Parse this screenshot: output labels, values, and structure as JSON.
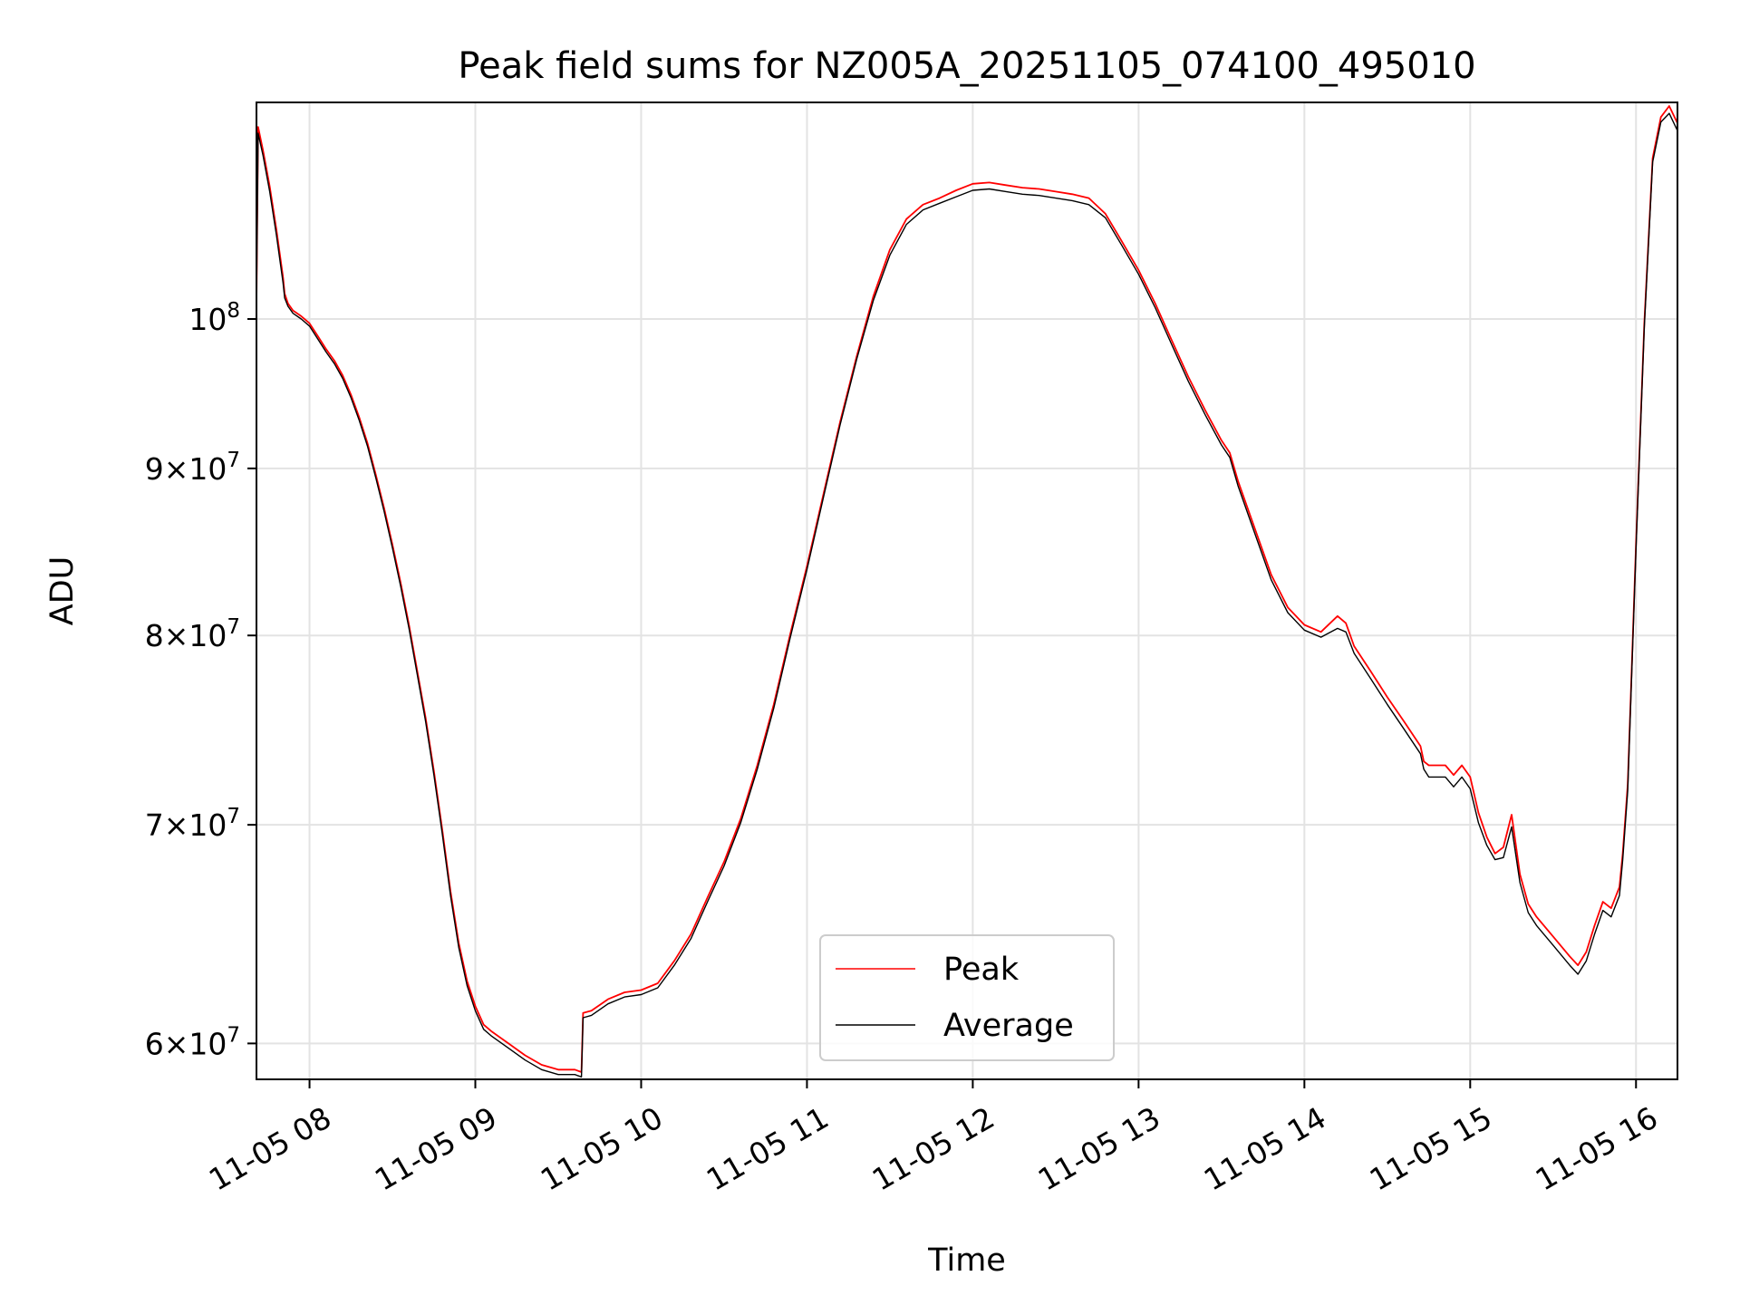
{
  "chart_data": {
    "type": "line",
    "title": "Peak field sums for NZ005A_20251105_074100_495010",
    "xlabel": "Time",
    "ylabel": "ADU",
    "yscale": "log",
    "grid": true,
    "legend_position": "bottom-center",
    "xlim": [
      7.68,
      16.25
    ],
    "ylim": [
      58.5,
      116.5
    ],
    "x_unit": "hour of day on 11-05",
    "y_unit": "ADU x 10^6",
    "x_ticks": [
      {
        "value": 8,
        "label": "11-05 08"
      },
      {
        "value": 9,
        "label": "11-05 09"
      },
      {
        "value": 10,
        "label": "11-05 10"
      },
      {
        "value": 11,
        "label": "11-05 11"
      },
      {
        "value": 12,
        "label": "11-05 12"
      },
      {
        "value": 13,
        "label": "11-05 13"
      },
      {
        "value": 14,
        "label": "11-05 14"
      },
      {
        "value": 15,
        "label": "11-05 15"
      },
      {
        "value": 16,
        "label": "11-05 16"
      }
    ],
    "y_ticks": [
      {
        "value": 60,
        "base": "6×10",
        "exp": "7"
      },
      {
        "value": 70,
        "base": "7×10",
        "exp": "7"
      },
      {
        "value": 80,
        "base": "8×10",
        "exp": "7"
      },
      {
        "value": 90,
        "base": "9×10",
        "exp": "7"
      },
      {
        "value": 100,
        "base": "10",
        "exp": "8"
      }
    ],
    "series": [
      {
        "name": "Peak",
        "color": "#ff0000",
        "x": [
          7.68,
          7.69,
          7.72,
          7.76,
          7.8,
          7.84,
          7.85,
          7.87,
          7.9,
          7.95,
          8.0,
          8.05,
          8.1,
          8.15,
          8.2,
          8.25,
          8.3,
          8.35,
          8.4,
          8.45,
          8.5,
          8.55,
          8.6,
          8.65,
          8.7,
          8.75,
          8.8,
          8.85,
          8.9,
          8.95,
          9.0,
          9.05,
          9.1,
          9.2,
          9.3,
          9.4,
          9.5,
          9.6,
          9.64,
          9.65,
          9.7,
          9.8,
          9.9,
          10.0,
          10.1,
          10.2,
          10.3,
          10.4,
          10.5,
          10.6,
          10.7,
          10.8,
          10.9,
          11.0,
          11.1,
          11.2,
          11.3,
          11.4,
          11.5,
          11.6,
          11.7,
          11.8,
          11.9,
          12.0,
          12.1,
          12.2,
          12.3,
          12.4,
          12.5,
          12.6,
          12.7,
          12.8,
          12.9,
          13.0,
          13.1,
          13.2,
          13.3,
          13.4,
          13.5,
          13.55,
          13.6,
          13.7,
          13.8,
          13.9,
          14.0,
          14.1,
          14.2,
          14.25,
          14.3,
          14.4,
          14.5,
          14.6,
          14.7,
          14.72,
          14.75,
          14.8,
          14.85,
          14.9,
          14.95,
          15.0,
          15.05,
          15.1,
          15.15,
          15.2,
          15.25,
          15.3,
          15.35,
          15.4,
          15.5,
          15.6,
          15.65,
          15.7,
          15.75,
          15.8,
          15.85,
          15.9,
          15.92,
          15.95,
          16.0,
          16.05,
          16.1,
          16.15,
          16.2,
          16.25
        ],
        "values": [
          101,
          114.5,
          112.6,
          109.8,
          106.5,
          103,
          101.8,
          101.1,
          100.6,
          100.2,
          99.7,
          98.8,
          97.9,
          97.1,
          96.1,
          94.8,
          93.3,
          91.6,
          89.6,
          87.5,
          85.3,
          83.0,
          80.6,
          78.0,
          75.5,
          72.7,
          69.8,
          66.8,
          64.4,
          62.7,
          61.6,
          60.8,
          60.5,
          60.0,
          59.5,
          59.1,
          58.9,
          58.9,
          58.8,
          61.3,
          61.4,
          61.9,
          62.2,
          62.3,
          62.6,
          63.6,
          64.8,
          66.5,
          68.2,
          70.3,
          73.0,
          76.2,
          80.1,
          84.0,
          88.4,
          93.0,
          97.4,
          101.6,
          105.0,
          107.3,
          108.4,
          108.9,
          109.5,
          110.0,
          110.1,
          109.9,
          109.7,
          109.6,
          109.4,
          109.2,
          108.9,
          107.7,
          105.6,
          103.5,
          101.1,
          98.5,
          96.0,
          93.8,
          91.8,
          91.0,
          89.2,
          86.3,
          83.5,
          81.6,
          80.6,
          80.2,
          81.1,
          80.7,
          79.4,
          78.0,
          76.6,
          75.3,
          74.0,
          73.2,
          73.0,
          73.0,
          73.0,
          72.5,
          73.0,
          72.4,
          70.6,
          69.4,
          68.6,
          68.9,
          70.5,
          67.6,
          66.2,
          65.6,
          64.7,
          63.8,
          63.4,
          64.0,
          65.2,
          66.3,
          66.0,
          67.0,
          68.6,
          72.0,
          85.4,
          99.7,
          112.0,
          115.3,
          116.2,
          114.8
        ]
      },
      {
        "name": "Average",
        "color": "#000000",
        "x": [
          7.68,
          7.69,
          7.72,
          7.76,
          7.8,
          7.84,
          7.85,
          7.87,
          7.9,
          7.95,
          8.0,
          8.05,
          8.1,
          8.15,
          8.2,
          8.25,
          8.3,
          8.35,
          8.4,
          8.45,
          8.5,
          8.55,
          8.6,
          8.65,
          8.7,
          8.75,
          8.8,
          8.85,
          8.9,
          8.95,
          9.0,
          9.05,
          9.1,
          9.2,
          9.3,
          9.4,
          9.5,
          9.6,
          9.64,
          9.65,
          9.7,
          9.8,
          9.9,
          10.0,
          10.1,
          10.2,
          10.3,
          10.4,
          10.5,
          10.6,
          10.7,
          10.8,
          10.9,
          11.0,
          11.1,
          11.2,
          11.3,
          11.4,
          11.5,
          11.6,
          11.7,
          11.8,
          11.9,
          12.0,
          12.1,
          12.2,
          12.3,
          12.4,
          12.5,
          12.6,
          12.7,
          12.8,
          12.9,
          13.0,
          13.1,
          13.2,
          13.3,
          13.4,
          13.5,
          13.55,
          13.6,
          13.7,
          13.8,
          13.9,
          14.0,
          14.1,
          14.2,
          14.25,
          14.3,
          14.4,
          14.5,
          14.6,
          14.7,
          14.72,
          14.75,
          14.8,
          14.85,
          14.9,
          14.95,
          15.0,
          15.05,
          15.1,
          15.15,
          15.2,
          15.25,
          15.3,
          15.35,
          15.4,
          15.5,
          15.6,
          15.65,
          15.7,
          15.75,
          15.8,
          15.85,
          15.9,
          15.92,
          15.95,
          16.0,
          16.05,
          16.1,
          16.15,
          16.2,
          16.25
        ],
        "values": [
          101,
          114.0,
          112.2,
          109.4,
          106.1,
          102.6,
          101.5,
          100.9,
          100.4,
          100.0,
          99.5,
          98.6,
          97.7,
          96.9,
          95.9,
          94.6,
          93.1,
          91.4,
          89.4,
          87.3,
          85.1,
          82.8,
          80.4,
          77.8,
          75.3,
          72.5,
          69.6,
          66.6,
          64.2,
          62.5,
          61.4,
          60.6,
          60.3,
          59.8,
          59.3,
          58.9,
          58.7,
          58.7,
          58.6,
          61.1,
          61.2,
          61.7,
          62.0,
          62.1,
          62.4,
          63.4,
          64.6,
          66.3,
          68.0,
          70.1,
          72.8,
          76.0,
          79.9,
          83.8,
          88.2,
          92.8,
          97.2,
          101.3,
          104.6,
          106.9,
          108.0,
          108.5,
          109.0,
          109.5,
          109.6,
          109.4,
          109.2,
          109.1,
          108.9,
          108.7,
          108.4,
          107.4,
          105.3,
          103.2,
          100.8,
          98.2,
          95.7,
          93.5,
          91.5,
          90.7,
          88.9,
          86.0,
          83.2,
          81.3,
          80.3,
          79.9,
          80.4,
          80.2,
          79.0,
          77.6,
          76.2,
          74.9,
          73.6,
          72.8,
          72.4,
          72.4,
          72.4,
          71.9,
          72.4,
          71.8,
          70.1,
          69.0,
          68.3,
          68.4,
          69.9,
          67.2,
          65.8,
          65.2,
          64.3,
          63.4,
          63.0,
          63.6,
          64.8,
          65.9,
          65.6,
          66.6,
          68.3,
          71.7,
          85.1,
          99.4,
          111.7,
          114.9,
          115.6,
          114.2
        ]
      }
    ]
  }
}
